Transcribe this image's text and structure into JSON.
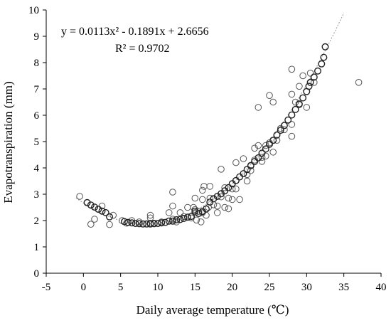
{
  "chart_data": {
    "type": "scatter",
    "title": "",
    "xlabel": "Daily average temperature (℃)",
    "ylabel": "Evapotranspiration (mm)",
    "xlim": [
      -5,
      40
    ],
    "ylim": [
      0,
      10
    ],
    "xticks": [
      -5,
      0,
      5,
      10,
      15,
      20,
      25,
      30,
      35,
      40
    ],
    "yticks": [
      0,
      1,
      2,
      3,
      4,
      5,
      6,
      7,
      8,
      9,
      10
    ],
    "grid": false,
    "legend": "none",
    "trendline": {
      "type": "polynomial",
      "coefficients": [
        0.0113,
        -0.1891,
        2.6656
      ],
      "equation_text": "y = 0.0113x² - 0.1891x + 2.6656",
      "r2_text": "R² = 0.9702",
      "style": "dotted"
    },
    "series": [
      {
        "name": "observed",
        "marker": "open-circle",
        "points": [
          [
            -0.5,
            2.92
          ],
          [
            1.0,
            1.86
          ],
          [
            1.5,
            2.05
          ],
          [
            2.5,
            2.55
          ],
          [
            3.5,
            1.85
          ],
          [
            4.0,
            2.2
          ],
          [
            5.2,
            2.0
          ],
          [
            5.8,
            1.9
          ],
          [
            6.5,
            2.0
          ],
          [
            7.5,
            1.95
          ],
          [
            9.0,
            2.2
          ],
          [
            9.0,
            2.1
          ],
          [
            9.0,
            1.9
          ],
          [
            9.5,
            1.9
          ],
          [
            10.5,
            1.95
          ],
          [
            11.5,
            2.3
          ],
          [
            12.0,
            3.08
          ],
          [
            12.0,
            2.55
          ],
          [
            12.0,
            2.05
          ],
          [
            12.5,
            1.95
          ],
          [
            13.0,
            2.3
          ],
          [
            13.5,
            2.15
          ],
          [
            14.0,
            2.5
          ],
          [
            14.5,
            2.1
          ],
          [
            14.8,
            2.5
          ],
          [
            15.0,
            2.85
          ],
          [
            15.0,
            2.42
          ],
          [
            15.0,
            2.3
          ],
          [
            15.2,
            2.02
          ],
          [
            15.5,
            2.35
          ],
          [
            15.8,
            1.95
          ],
          [
            16.0,
            3.15
          ],
          [
            16.0,
            2.8
          ],
          [
            16.0,
            2.3
          ],
          [
            16.2,
            3.3
          ],
          [
            16.5,
            2.2
          ],
          [
            16.8,
            2.5
          ],
          [
            17.0,
            3.3
          ],
          [
            17.0,
            2.85
          ],
          [
            17.5,
            2.6
          ],
          [
            18.0,
            2.55
          ],
          [
            18.0,
            2.3
          ],
          [
            18.5,
            3.95
          ],
          [
            18.5,
            2.9
          ],
          [
            19.0,
            3.25
          ],
          [
            19.0,
            2.5
          ],
          [
            19.5,
            2.85
          ],
          [
            19.5,
            2.45
          ],
          [
            20.0,
            3.2
          ],
          [
            20.0,
            2.8
          ],
          [
            20.5,
            4.2
          ],
          [
            20.5,
            3.2
          ],
          [
            21.0,
            2.8
          ],
          [
            21.5,
            4.35
          ],
          [
            22.0,
            3.75
          ],
          [
            22.0,
            3.5
          ],
          [
            22.5,
            4.1
          ],
          [
            22.5,
            3.9
          ],
          [
            23.0,
            4.3
          ],
          [
            23.0,
            4.75
          ],
          [
            23.5,
            6.3
          ],
          [
            23.5,
            4.85
          ],
          [
            24.0,
            4.4
          ],
          [
            24.0,
            4.25
          ],
          [
            24.5,
            4.85
          ],
          [
            24.5,
            4.45
          ],
          [
            25.0,
            6.75
          ],
          [
            25.0,
            4.95
          ],
          [
            25.5,
            6.5
          ],
          [
            25.5,
            4.6
          ],
          [
            26.0,
            5.05
          ],
          [
            26.5,
            5.5
          ],
          [
            27.0,
            5.45
          ],
          [
            28.0,
            7.75
          ],
          [
            28.0,
            6.8
          ],
          [
            28.0,
            5.65
          ],
          [
            28.0,
            5.2
          ],
          [
            28.5,
            6.5
          ],
          [
            29.0,
            6.4
          ],
          [
            29.0,
            7.1
          ],
          [
            29.5,
            7.5
          ],
          [
            30.0,
            6.3
          ],
          [
            30.5,
            7.6
          ],
          [
            31.0,
            7.25
          ],
          [
            37.0,
            7.25
          ]
        ]
      },
      {
        "name": "fitted",
        "marker": "open-circle-bold",
        "points": [
          [
            0.5,
            2.68
          ],
          [
            1.0,
            2.59
          ],
          [
            1.5,
            2.51
          ],
          [
            2.0,
            2.43
          ],
          [
            2.5,
            2.36
          ],
          [
            3.0,
            2.3
          ],
          [
            3.5,
            2.14
          ],
          [
            5.5,
            1.96
          ],
          [
            6.0,
            1.93
          ],
          [
            6.5,
            1.91
          ],
          [
            7.0,
            1.89
          ],
          [
            7.5,
            1.88
          ],
          [
            8.0,
            1.87
          ],
          [
            8.5,
            1.87
          ],
          [
            9.0,
            1.87
          ],
          [
            9.5,
            1.88
          ],
          [
            10.0,
            1.89
          ],
          [
            10.5,
            1.91
          ],
          [
            11.0,
            1.93
          ],
          [
            11.5,
            1.98
          ],
          [
            12.0,
            1.98
          ],
          [
            12.5,
            2.03
          ],
          [
            13.0,
            2.04
          ],
          [
            13.5,
            2.08
          ],
          [
            14.0,
            2.13
          ],
          [
            14.5,
            2.16
          ],
          [
            15.0,
            2.36
          ],
          [
            15.5,
            2.27
          ],
          [
            16.0,
            2.34
          ],
          [
            16.5,
            2.44
          ],
          [
            17.0,
            2.7
          ],
          [
            17.5,
            2.83
          ],
          [
            18.0,
            2.92
          ],
          [
            18.5,
            3.02
          ],
          [
            19.0,
            3.13
          ],
          [
            19.5,
            3.25
          ],
          [
            20.0,
            3.4
          ],
          [
            20.5,
            3.52
          ],
          [
            21.0,
            3.66
          ],
          [
            21.5,
            3.78
          ],
          [
            22.0,
            3.94
          ],
          [
            22.5,
            4.08
          ],
          [
            23.0,
            4.24
          ],
          [
            23.5,
            4.38
          ],
          [
            24.0,
            4.56
          ],
          [
            24.5,
            4.72
          ],
          [
            25.0,
            4.9
          ],
          [
            25.5,
            5.05
          ],
          [
            26.0,
            5.25
          ],
          [
            26.5,
            5.43
          ],
          [
            27.0,
            5.61
          ],
          [
            27.5,
            5.82
          ],
          [
            28.0,
            6.01
          ],
          [
            28.5,
            6.22
          ],
          [
            29.0,
            6.43
          ],
          [
            29.5,
            6.66
          ],
          [
            30.0,
            6.9
          ],
          [
            30.3,
            7.1
          ],
          [
            30.5,
            7.25
          ],
          [
            31.0,
            7.45
          ],
          [
            31.5,
            7.68
          ],
          [
            32.0,
            7.95
          ],
          [
            32.3,
            8.2
          ],
          [
            32.5,
            8.6
          ]
        ]
      }
    ]
  }
}
